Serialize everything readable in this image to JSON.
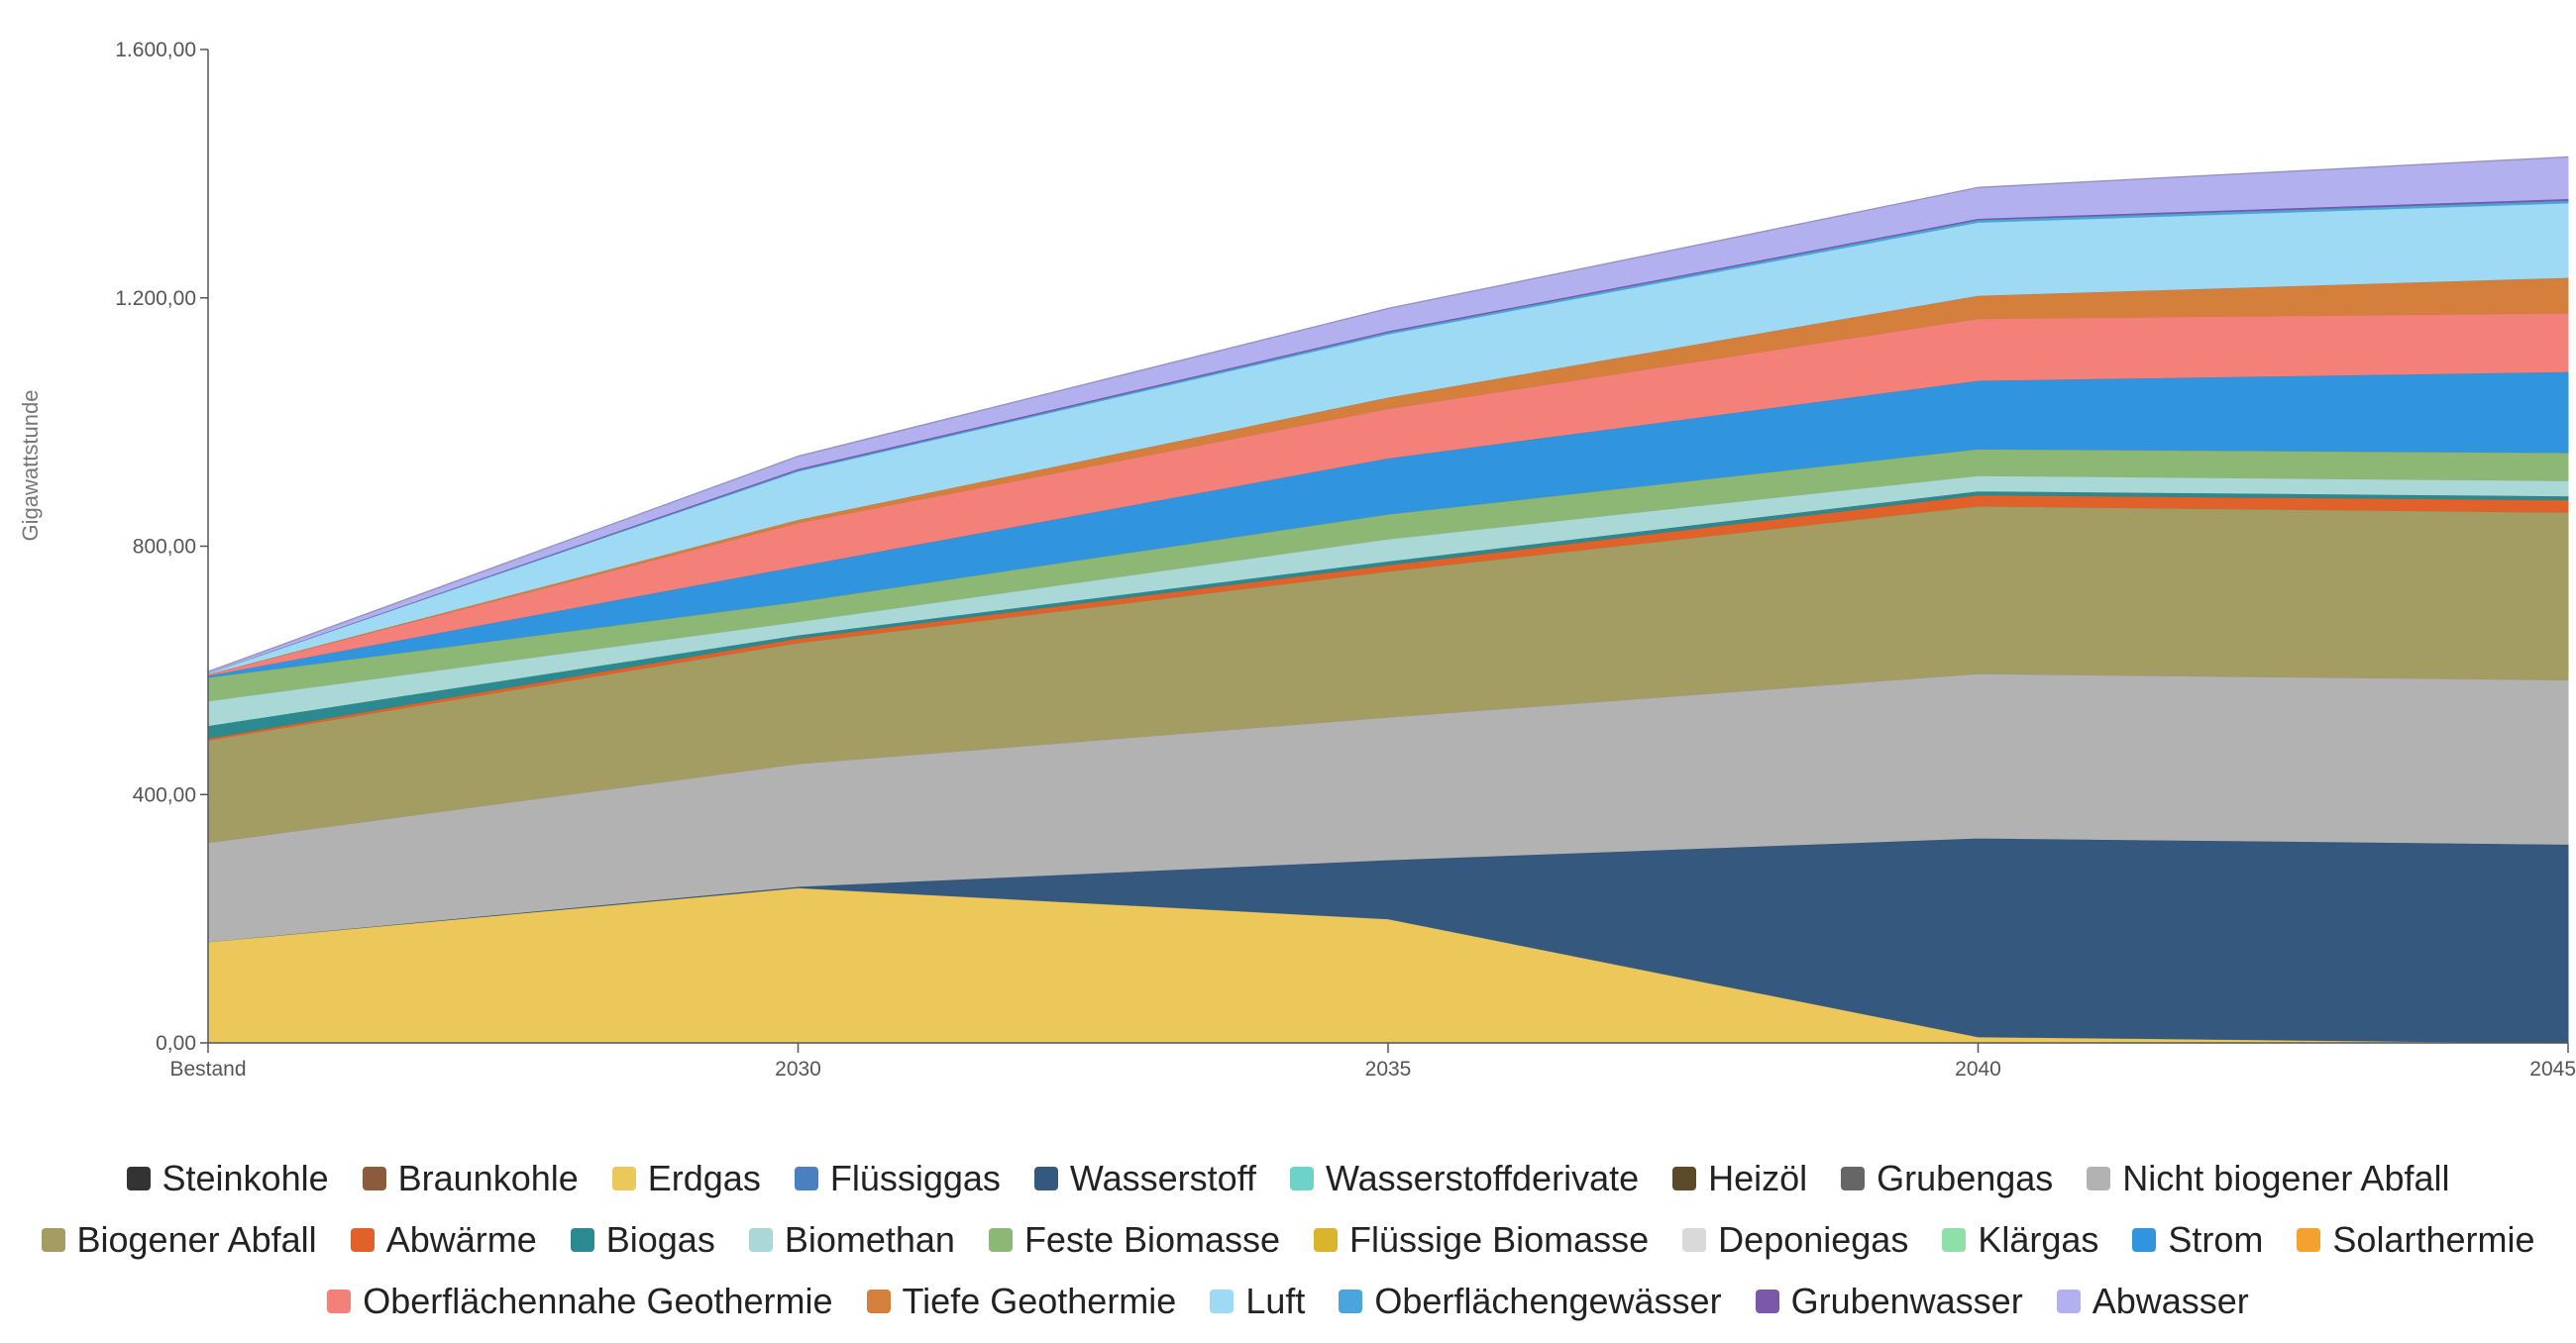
{
  "chart_data": {
    "type": "area",
    "stacked": true,
    "x": [
      "Bestand",
      "2030",
      "2035",
      "2040",
      "2045"
    ],
    "ylabel": "Gigawattstunde",
    "xlabel": "",
    "ylim": [
      0,
      1600
    ],
    "yticks": [
      0,
      400,
      800,
      1200,
      1600
    ],
    "ytick_labels": [
      "0,00",
      "400,00",
      "800,00",
      "1.200,00",
      "1.600,00"
    ],
    "grid": false,
    "legend_position": "bottom",
    "series": [
      {
        "name": "Steinkohle",
        "color": "#333333",
        "values": [
          0,
          0,
          0,
          0,
          0
        ]
      },
      {
        "name": "Braunkohle",
        "color": "#8c5a3c",
        "values": [
          0,
          0,
          0,
          0,
          0
        ]
      },
      {
        "name": "Erdgas",
        "color": "#ecc85a",
        "values": [
          163,
          250,
          200,
          10,
          0
        ]
      },
      {
        "name": "Flüssiggas",
        "color": "#4a80c0",
        "values": [
          0,
          0,
          0,
          0,
          0
        ]
      },
      {
        "name": "Wasserstoff",
        "color": "#35587f",
        "values": [
          0,
          2,
          95,
          320,
          320
        ]
      },
      {
        "name": "Wasserstoffderivate",
        "color": "#6dd3c9",
        "values": [
          0,
          0,
          0,
          0,
          0
        ]
      },
      {
        "name": "Heizöl",
        "color": "#5a4a2a",
        "values": [
          0,
          0,
          0,
          0,
          0
        ]
      },
      {
        "name": "Grubengas",
        "color": "#666666",
        "values": [
          0,
          0,
          0,
          0,
          0
        ]
      },
      {
        "name": "Nicht biogener Abfall",
        "color": "#b2b2b2",
        "values": [
          160,
          198,
          230,
          265,
          265
        ]
      },
      {
        "name": "Biogener Abfall",
        "color": "#a39d64",
        "values": [
          165,
          195,
          235,
          270,
          270
        ]
      },
      {
        "name": "Abwärme",
        "color": "#e0622a",
        "values": [
          3,
          7,
          10,
          18,
          20
        ]
      },
      {
        "name": "Biogas",
        "color": "#2b8a8f",
        "values": [
          20,
          5,
          6,
          6,
          6
        ]
      },
      {
        "name": "Biomethan",
        "color": "#a9d8d6",
        "values": [
          40,
          22,
          36,
          25,
          25
        ]
      },
      {
        "name": "Feste Biomasse",
        "color": "#8db774",
        "values": [
          38,
          32,
          40,
          43,
          45
        ]
      },
      {
        "name": "Flüssige Biomasse",
        "color": "#d9b42c",
        "values": [
          0,
          0,
          0,
          0,
          0
        ]
      },
      {
        "name": "Deponiegas",
        "color": "#d9d9d9",
        "values": [
          0,
          0,
          0,
          0,
          0
        ]
      },
      {
        "name": "Klärgas",
        "color": "#8ee0a8",
        "values": [
          0,
          0,
          0,
          0,
          0
        ]
      },
      {
        "name": "Strom",
        "color": "#3094df",
        "values": [
          3,
          57,
          90,
          110,
          130
        ]
      },
      {
        "name": "Solarthermie",
        "color": "#f5a12f",
        "values": [
          0,
          0,
          0,
          0,
          0
        ]
      },
      {
        "name": "Oberflächennahe Geothermie",
        "color": "#f4807a",
        "values": [
          2,
          70,
          80,
          100,
          95
        ]
      },
      {
        "name": "Tiefe Geothermie",
        "color": "#d4803c",
        "values": [
          0,
          5,
          18,
          37,
          57
        ]
      },
      {
        "name": "Luft",
        "color": "#9fdaf4",
        "values": [
          2,
          78,
          102,
          118,
          120
        ]
      },
      {
        "name": "Oberflächengewässer",
        "color": "#4aa5dd",
        "values": [
          0,
          2,
          3,
          4,
          4
        ]
      },
      {
        "name": "Grubenwasser",
        "color": "#7c58aa",
        "values": [
          0,
          2,
          2,
          2,
          3
        ]
      },
      {
        "name": "Abwasser",
        "color": "#b3b0f0",
        "values": [
          2,
          20,
          36,
          50,
          67
        ]
      }
    ]
  }
}
